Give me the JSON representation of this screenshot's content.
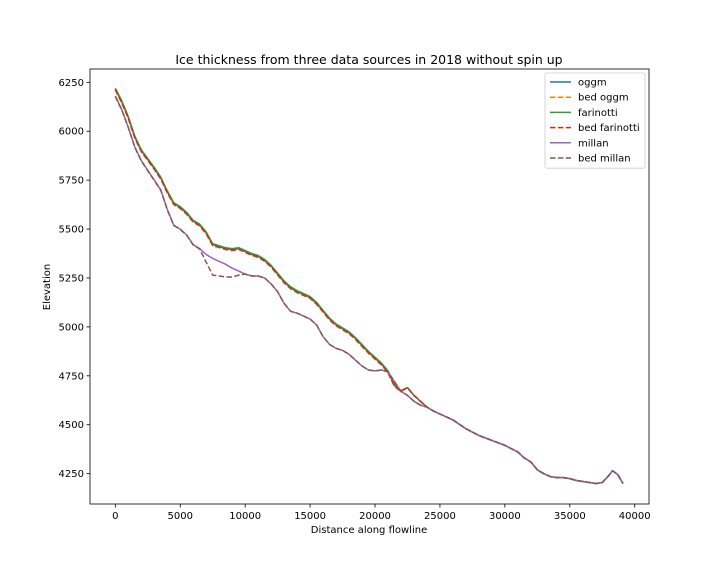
{
  "chart_data": {
    "type": "line",
    "title": "Ice thickness from three data sources in 2018 without spin up",
    "xlabel": "Distance along flowline",
    "ylabel": "Elevation",
    "xlim": [
      -1950,
      41100
    ],
    "ylim": [
      4095,
      6318
    ],
    "xticks": [
      0,
      5000,
      10000,
      15000,
      20000,
      25000,
      30000,
      35000,
      40000
    ],
    "yticks": [
      4250,
      4500,
      4750,
      5000,
      5250,
      5500,
      5750,
      6000,
      6250
    ],
    "grid": false,
    "legend_position": "top-right",
    "series": [
      {
        "name": "oggm",
        "color": "#1f77b4",
        "style": "solid",
        "x": [
          0,
          500,
          1000,
          1500,
          2000,
          2500,
          3000,
          3500,
          4000,
          4500,
          5000,
          5500,
          6000,
          6500,
          7000,
          7500,
          8000,
          8500,
          9000,
          9500,
          10000,
          10500,
          11000,
          11500,
          12000,
          12500,
          13000,
          13500,
          14000,
          14500,
          15000,
          15500,
          16000,
          16500,
          17000,
          17500,
          18000,
          18500,
          19000,
          19500,
          20000,
          20500,
          21000,
          21500,
          22000,
          22500,
          23000,
          23500,
          24000,
          24500,
          25000,
          26000,
          27000,
          28000,
          29000,
          30000,
          31000,
          31500,
          32000,
          32500,
          33000,
          33500,
          34000,
          34500,
          35000,
          35500,
          36000,
          36500,
          37000,
          37500,
          38000,
          38300,
          38700,
          39100
        ],
        "y": [
          6215,
          6150,
          6070,
          5970,
          5900,
          5855,
          5810,
          5760,
          5690,
          5630,
          5610,
          5580,
          5540,
          5520,
          5480,
          5420,
          5410,
          5400,
          5395,
          5400,
          5385,
          5370,
          5360,
          5340,
          5310,
          5270,
          5230,
          5200,
          5180,
          5165,
          5150,
          5120,
          5080,
          5040,
          5010,
          4990,
          4970,
          4940,
          4905,
          4870,
          4840,
          4810,
          4770,
          4700,
          4670,
          4690,
          4650,
          4620,
          4590,
          4570,
          4555,
          4525,
          4480,
          4445,
          4420,
          4395,
          4360,
          4330,
          4310,
          4270,
          4250,
          4235,
          4230,
          4230,
          4225,
          4215,
          4210,
          4205,
          4200,
          4205,
          4240,
          4265,
          4245,
          4200
        ]
      },
      {
        "name": "bed oggm",
        "color": "#ff7f0e",
        "style": "dashed",
        "x": [
          0,
          500,
          1000,
          1500,
          2000,
          2500,
          3000,
          3500,
          4000,
          4500,
          5000,
          5500,
          6000,
          6500,
          7000,
          7500,
          8000,
          8500,
          9000,
          9500,
          10000,
          10500,
          11000,
          11500,
          12000,
          12500,
          13000,
          13500,
          14000,
          14500,
          15000,
          15500,
          16000,
          16500,
          17000,
          17500,
          18000,
          18500,
          19000,
          19500,
          20000,
          20500,
          21000,
          21500,
          22000,
          22500,
          23000,
          23500,
          24000,
          24500,
          25000,
          26000,
          27000,
          28000,
          29000,
          30000,
          31000,
          31500,
          32000,
          32500,
          33000,
          33500,
          34000,
          34500,
          35000,
          35500,
          36000,
          36500,
          37000,
          37500,
          38000,
          38300,
          38700,
          39100
        ],
        "y": [
          6210,
          6145,
          6065,
          5965,
          5895,
          5850,
          5805,
          5755,
          5685,
          5625,
          5605,
          5575,
          5535,
          5515,
          5475,
          5415,
          5405,
          5395,
          5390,
          5395,
          5380,
          5365,
          5355,
          5335,
          5305,
          5265,
          5225,
          5195,
          5175,
          5160,
          5145,
          5115,
          5075,
          5035,
          5005,
          4985,
          4965,
          4935,
          4900,
          4865,
          4835,
          4805,
          4765,
          4695,
          4670,
          4690,
          4650,
          4620,
          4590,
          4570,
          4555,
          4525,
          4480,
          4445,
          4420,
          4395,
          4360,
          4330,
          4310,
          4270,
          4250,
          4235,
          4230,
          4230,
          4225,
          4215,
          4210,
          4205,
          4200,
          4205,
          4240,
          4265,
          4245,
          4200
        ]
      },
      {
        "name": "farinotti",
        "color": "#2ca02c",
        "style": "solid",
        "x": [
          0,
          500,
          1000,
          1500,
          2000,
          2500,
          3000,
          3500,
          4000,
          4500,
          5000,
          5500,
          6000,
          6500,
          7000,
          7500,
          8000,
          8500,
          9000,
          9500,
          10000,
          10500,
          11000,
          11500,
          12000,
          12500,
          13000,
          13500,
          14000,
          14500,
          15000,
          15500,
          16000,
          16500,
          17000,
          17500,
          18000,
          18500,
          19000,
          19500,
          20000,
          20500,
          21000,
          21500,
          22000,
          22500,
          23000,
          23500,
          24000,
          24500,
          25000,
          26000,
          27000,
          28000,
          29000,
          30000,
          31000,
          31500,
          32000,
          32500,
          33000,
          33500,
          34000,
          34500,
          35000,
          35500,
          36000,
          36500,
          37000,
          37500,
          38000,
          38300,
          38700,
          39100
        ],
        "y": [
          6220,
          6155,
          6075,
          5975,
          5905,
          5860,
          5815,
          5765,
          5695,
          5635,
          5615,
          5585,
          5545,
          5525,
          5485,
          5425,
          5415,
          5405,
          5400,
          5405,
          5390,
          5375,
          5365,
          5345,
          5315,
          5275,
          5235,
          5205,
          5185,
          5170,
          5155,
          5125,
          5085,
          5045,
          5015,
          4995,
          4975,
          4945,
          4910,
          4875,
          4845,
          4815,
          4775,
          4705,
          4675,
          4690,
          4650,
          4620,
          4590,
          4570,
          4555,
          4525,
          4480,
          4445,
          4420,
          4395,
          4360,
          4330,
          4310,
          4270,
          4250,
          4235,
          4230,
          4230,
          4225,
          4215,
          4210,
          4205,
          4200,
          4205,
          4240,
          4265,
          4245,
          4200
        ]
      },
      {
        "name": "bed farinotti",
        "color": "#d62728",
        "style": "dashed",
        "x": [
          0,
          500,
          1000,
          1500,
          2000,
          2500,
          3000,
          3500,
          4000,
          4500,
          5000,
          5500,
          6000,
          6500,
          7000,
          7500,
          8000,
          8500,
          9000,
          9500,
          10000,
          10500,
          11000,
          11500,
          12000,
          12500,
          13000,
          13500,
          14000,
          14500,
          15000,
          15500,
          16000,
          16500,
          17000,
          17500,
          18000,
          18500,
          19000,
          19500,
          20000,
          20500,
          21000,
          21500,
          22000,
          22500,
          23000,
          23500,
          24000,
          24500,
          25000,
          26000,
          27000,
          28000,
          29000,
          30000,
          31000,
          31500,
          32000,
          32500,
          33000,
          33500,
          34000,
          34500,
          35000,
          35500,
          36000,
          36500,
          37000,
          37500,
          38000,
          38300,
          38700,
          39100
        ],
        "y": [
          6212,
          6147,
          6067,
          5967,
          5897,
          5852,
          5807,
          5757,
          5687,
          5627,
          5607,
          5577,
          5537,
          5517,
          5477,
          5417,
          5407,
          5397,
          5392,
          5397,
          5382,
          5367,
          5357,
          5337,
          5307,
          5267,
          5227,
          5197,
          5177,
          5162,
          5147,
          5117,
          5077,
          5037,
          5007,
          4987,
          4967,
          4937,
          4902,
          4867,
          4837,
          4807,
          4767,
          4697,
          4672,
          4690,
          4650,
          4620,
          4590,
          4570,
          4555,
          4525,
          4480,
          4445,
          4420,
          4395,
          4360,
          4330,
          4310,
          4270,
          4250,
          4235,
          4230,
          4230,
          4225,
          4215,
          4210,
          4205,
          4200,
          4205,
          4240,
          4265,
          4245,
          4200
        ]
      },
      {
        "name": "millan",
        "color": "#9467bd",
        "style": "solid",
        "x": [
          0,
          500,
          1000,
          1500,
          2000,
          2500,
          3000,
          3500,
          4000,
          4500,
          5000,
          5500,
          6000,
          6500,
          7000,
          7500,
          8000,
          8500,
          9000,
          9500,
          10000,
          10500,
          11000,
          11500,
          12000,
          12500,
          13000,
          13500,
          14000,
          14500,
          15000,
          15500,
          16000,
          16500,
          17000,
          17500,
          18000,
          18500,
          19000,
          19500,
          20000,
          20500,
          21000,
          21500,
          22000,
          22500,
          23000,
          23500,
          24000,
          24500,
          25000,
          26000,
          27000,
          28000,
          29000,
          30000,
          31000,
          31500,
          32000,
          32500,
          33000,
          33500,
          34000,
          34500,
          35000,
          35500,
          36000,
          36500,
          37000,
          37500,
          38000,
          38300,
          38700,
          39100
        ],
        "y": [
          6180,
          6110,
          6020,
          5920,
          5850,
          5800,
          5750,
          5700,
          5600,
          5520,
          5500,
          5470,
          5420,
          5400,
          5370,
          5350,
          5335,
          5320,
          5300,
          5285,
          5270,
          5260,
          5260,
          5250,
          5220,
          5180,
          5120,
          5080,
          5070,
          5055,
          5040,
          5010,
          4950,
          4910,
          4890,
          4880,
          4860,
          4830,
          4800,
          4780,
          4775,
          4780,
          4770,
          4720,
          4670,
          4650,
          4620,
          4600,
          4590,
          4570,
          4555,
          4525,
          4480,
          4445,
          4420,
          4395,
          4360,
          4330,
          4310,
          4270,
          4250,
          4235,
          4230,
          4230,
          4225,
          4215,
          4210,
          4205,
          4200,
          4205,
          4240,
          4265,
          4245,
          4200
        ]
      },
      {
        "name": "bed millan",
        "color": "#8c564b",
        "style": "dashed",
        "x": [
          0,
          500,
          1000,
          1500,
          2000,
          2500,
          3000,
          3500,
          4000,
          4500,
          5000,
          5500,
          6000,
          6500,
          7000,
          7500,
          8000,
          8500,
          9000,
          9500,
          10000,
          10500,
          11000,
          11500,
          12000,
          12500,
          13000,
          13500,
          14000,
          14500,
          15000,
          15500,
          16000,
          16500,
          17000,
          17500,
          18000,
          18500,
          19000,
          19500,
          20000,
          20500,
          21000,
          21500,
          22000,
          22500,
          23000,
          23500,
          24000,
          24500,
          25000,
          26000,
          27000,
          28000,
          29000,
          30000,
          31000,
          31500,
          32000,
          32500,
          33000,
          33500,
          34000,
          34500,
          35000,
          35500,
          36000,
          36500,
          37000,
          37500,
          38000,
          38300,
          38700,
          39100
        ],
        "y": [
          6178,
          6108,
          6018,
          5918,
          5848,
          5798,
          5748,
          5698,
          5598,
          5518,
          5498,
          5468,
          5418,
          5398,
          5330,
          5265,
          5260,
          5255,
          5255,
          5265,
          5270,
          5260,
          5260,
          5250,
          5220,
          5180,
          5120,
          5080,
          5070,
          5055,
          5040,
          5010,
          4950,
          4910,
          4890,
          4880,
          4860,
          4830,
          4800,
          4780,
          4775,
          4780,
          4770,
          4720,
          4670,
          4650,
          4620,
          4600,
          4590,
          4570,
          4555,
          4525,
          4480,
          4445,
          4420,
          4395,
          4360,
          4330,
          4310,
          4270,
          4250,
          4235,
          4230,
          4230,
          4225,
          4215,
          4210,
          4205,
          4200,
          4205,
          4240,
          4265,
          4245,
          4200
        ]
      }
    ]
  }
}
